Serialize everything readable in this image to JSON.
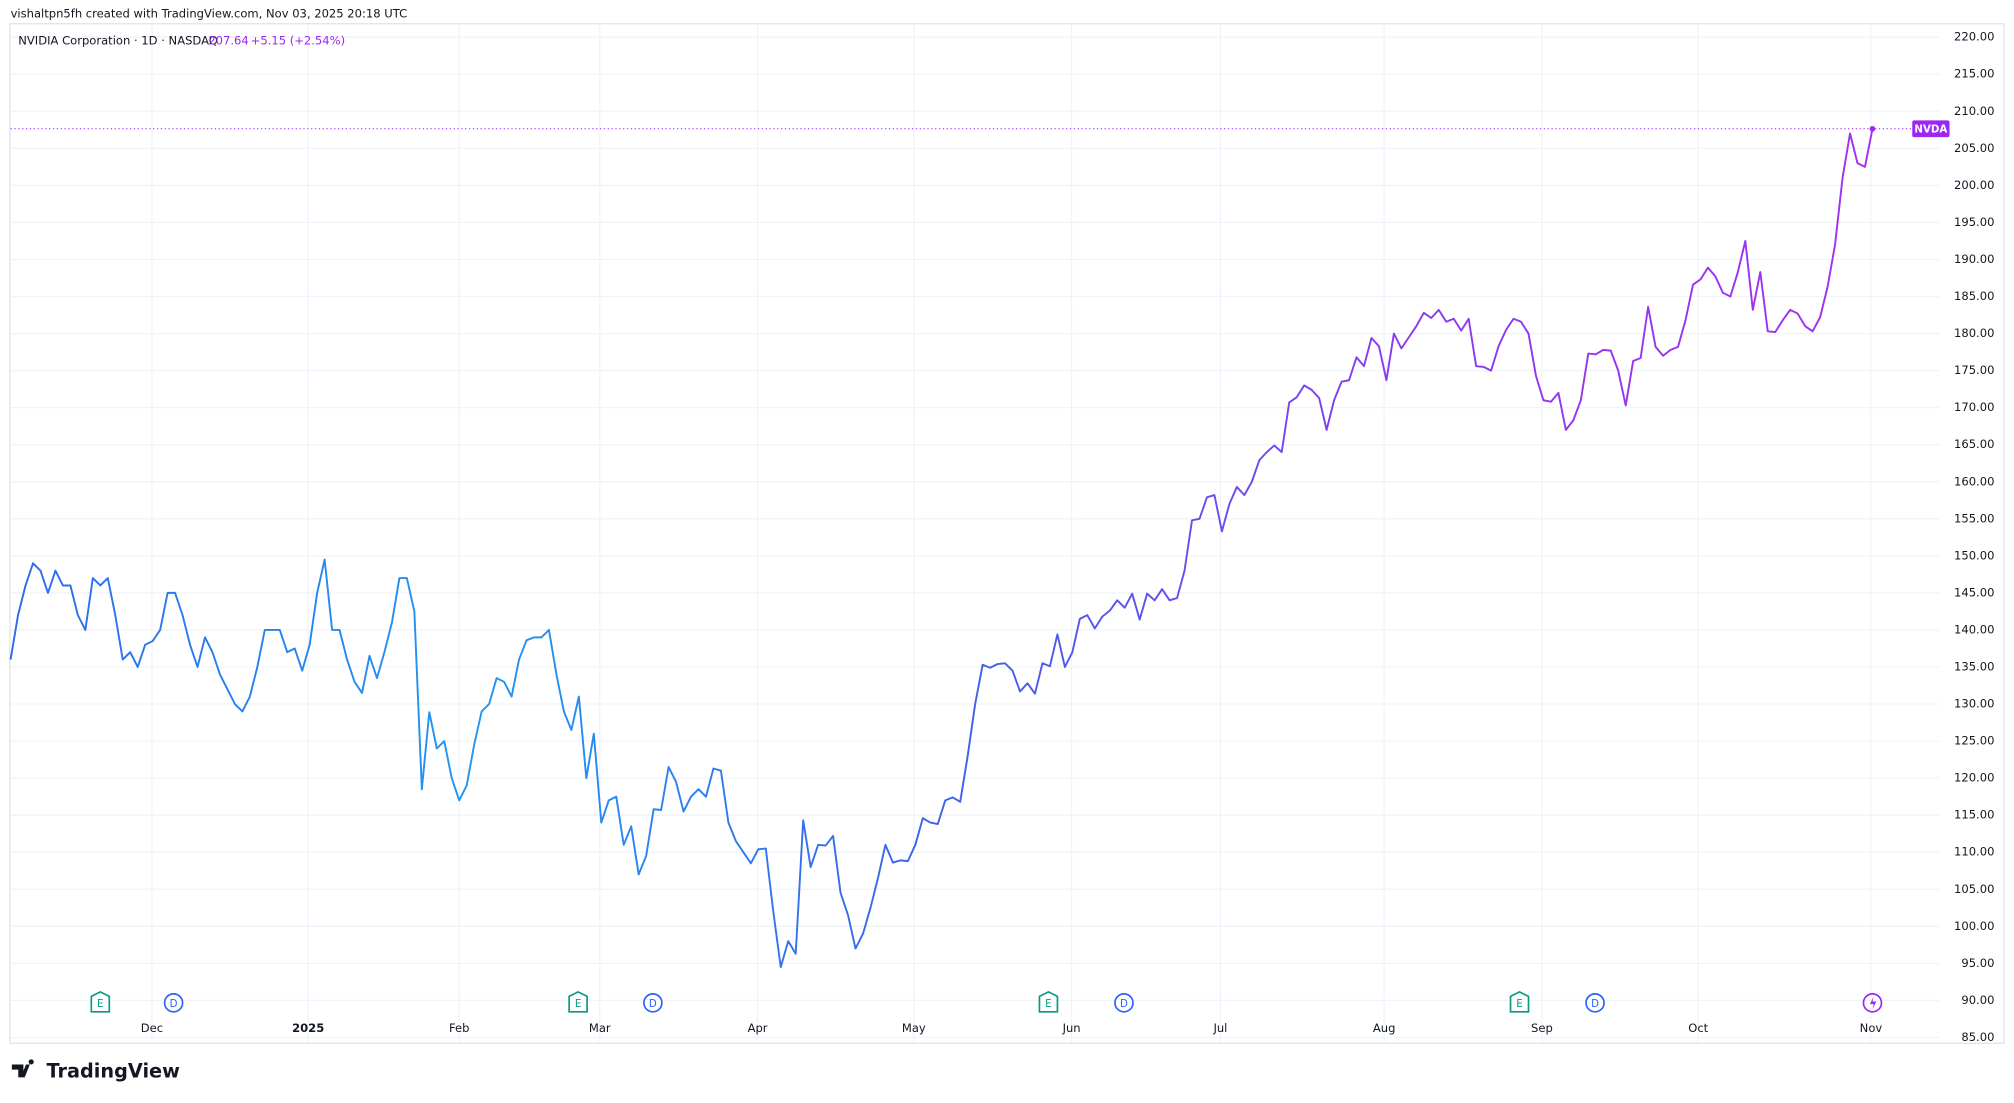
{
  "header": {
    "credit": "vishaltpn5fh created with TradingView.com, Nov 03, 2025 20:18 UTC",
    "symbol": "NVIDIA Corporation · 1D · NASDAQ",
    "change": "+5.15 (+2.54%)"
  },
  "footer": {
    "brand": "TradingView"
  },
  "chart_data": {
    "type": "line",
    "series": [
      {
        "name": "NVDA",
        "color": "#9c27f5",
        "gradient_colors": [
          "#2f6bea",
          "#2196f3",
          "#3c63ea",
          "#8a3bf2",
          "#a22ff2"
        ],
        "values": [
          136,
          142,
          146,
          149,
          148,
          145,
          148,
          146,
          146,
          142,
          140,
          147,
          146,
          147,
          142,
          136,
          137,
          135,
          138,
          138.5,
          140,
          145,
          145,
          142,
          138,
          135,
          139,
          137,
          134,
          132,
          130,
          129,
          131,
          135,
          140,
          140,
          140,
          137,
          137.5,
          134.5,
          138,
          145,
          149.5,
          140,
          140,
          136,
          133,
          131.5,
          136.5,
          133.5,
          137,
          141,
          147,
          147,
          142.5,
          118.5,
          128.9,
          124,
          125,
          120,
          117,
          119,
          124.5,
          129,
          130,
          133.5,
          133,
          131,
          136,
          138.6,
          139,
          139,
          140,
          134,
          129,
          126.5,
          131,
          120,
          126,
          114,
          117,
          117.5,
          111,
          113.5,
          107,
          109.5,
          115.8,
          115.7,
          121.5,
          119.5,
          115.5,
          117.5,
          118.5,
          117.5,
          121.3,
          121,
          114,
          111.5,
          110,
          108.5,
          110.4,
          110.5,
          102,
          94.5,
          98,
          96.3,
          114.3,
          108,
          111,
          110.9,
          112.2,
          104.5,
          101.5,
          97,
          99,
          102.5,
          106.5,
          111,
          108.6,
          108.9,
          108.8,
          111,
          114.6,
          114,
          113.8,
          117,
          117.4,
          116.8,
          123,
          130,
          135.3,
          134.9,
          135.4,
          135.5,
          134.5,
          131.7,
          132.8,
          131.4,
          135.5,
          135.1,
          139.4,
          135,
          137,
          141.5,
          142,
          140.2,
          141.8,
          142.6,
          144,
          143,
          144.9,
          141.4,
          144.9,
          144,
          145.5,
          144,
          144.3,
          148,
          154.8,
          155,
          157.9,
          158.2,
          153.3,
          157,
          159.3,
          158.2,
          160,
          162.9,
          164,
          164.9,
          164,
          170.7,
          171.4,
          173,
          172.4,
          171.3,
          167,
          171,
          173.5,
          173.7,
          176.8,
          175.6,
          179.4,
          178.3,
          173.7,
          180,
          178,
          179.5,
          181,
          182.8,
          182.1,
          183.2,
          181.6,
          182,
          180.4,
          182,
          175.6,
          175.5,
          175,
          178.3,
          180.5,
          182,
          181.6,
          180,
          174.3,
          171,
          170.8,
          172,
          167,
          168.3,
          171,
          177.3,
          177.2,
          177.8,
          177.7,
          175,
          170.3,
          176.3,
          176.7,
          183.6,
          178.2,
          177,
          177.8,
          178.2,
          181.8,
          186.6,
          187.3,
          188.9,
          187.7,
          185.5,
          185,
          188.3,
          192.5,
          183.2,
          188.3,
          180.3,
          180.2,
          181.8,
          183.2,
          182.7,
          181,
          180.3,
          182.2,
          186.3,
          192,
          201,
          207,
          203,
          202.5,
          207.64
        ]
      }
    ],
    "xlim": [
      0,
      249
    ],
    "xticks": [
      {
        "value": 18.9,
        "label": "Dec"
      },
      {
        "value": 39.8,
        "label": "2025"
      },
      {
        "value": 60,
        "label": "Feb"
      },
      {
        "value": 78.8,
        "label": "Mar"
      },
      {
        "value": 99.9,
        "label": "Apr"
      },
      {
        "value": 120.8,
        "label": "May"
      },
      {
        "value": 141.9,
        "label": "Jun"
      },
      {
        "value": 161.8,
        "label": "Jul"
      },
      {
        "value": 183.7,
        "label": "Aug"
      },
      {
        "value": 204.8,
        "label": "Sep"
      },
      {
        "value": 225.7,
        "label": "Oct"
      },
      {
        "value": 248.8,
        "label": "Nov"
      }
    ],
    "ylim": [
      84.3,
      221.9
    ],
    "yticks": [
      {
        "value": 85,
        "label": "85.00"
      },
      {
        "value": 90,
        "label": "90.00"
      },
      {
        "value": 95,
        "label": "95.00"
      },
      {
        "value": 100,
        "label": "100.00"
      },
      {
        "value": 105,
        "label": "105.00"
      },
      {
        "value": 110,
        "label": "110.00"
      },
      {
        "value": 115,
        "label": "115.00"
      },
      {
        "value": 120,
        "label": "120.00"
      },
      {
        "value": 125,
        "label": "125.00"
      },
      {
        "value": 130,
        "label": "130.00"
      },
      {
        "value": 135,
        "label": "135.00"
      },
      {
        "value": 140,
        "label": "140.00"
      },
      {
        "value": 145,
        "label": "145.00"
      },
      {
        "value": 150,
        "label": "150.00"
      },
      {
        "value": 155,
        "label": "155.00"
      },
      {
        "value": 160,
        "label": "160.00"
      },
      {
        "value": 165,
        "label": "165.00"
      },
      {
        "value": 170,
        "label": "170.00"
      },
      {
        "value": 175,
        "label": "175.00"
      },
      {
        "value": 180,
        "label": "180.00"
      },
      {
        "value": 185,
        "label": "185.00"
      },
      {
        "value": 190,
        "label": "190.00"
      },
      {
        "value": 195,
        "label": "195.00"
      },
      {
        "value": 200,
        "label": "200.00"
      },
      {
        "value": 205,
        "label": "205.00"
      },
      {
        "value": 210,
        "label": "210.00"
      },
      {
        "value": 215,
        "label": "215.00"
      },
      {
        "value": 220,
        "label": "220.00"
      }
    ],
    "grid": true,
    "events": [
      {
        "x": 12,
        "label": "E",
        "color": "#089981"
      },
      {
        "x": 21.8,
        "label": "D",
        "color": "#2962ff"
      },
      {
        "x": 75.9,
        "label": "E",
        "color": "#089981"
      },
      {
        "x": 85.9,
        "label": "D",
        "color": "#2962ff"
      },
      {
        "x": 138.8,
        "label": "E",
        "color": "#089981"
      },
      {
        "x": 148.9,
        "label": "D",
        "color": "#2962ff"
      },
      {
        "x": 201.8,
        "label": "E",
        "color": "#089981"
      },
      {
        "x": 211.9,
        "label": "D",
        "color": "#2962ff"
      }
    ]
  }
}
